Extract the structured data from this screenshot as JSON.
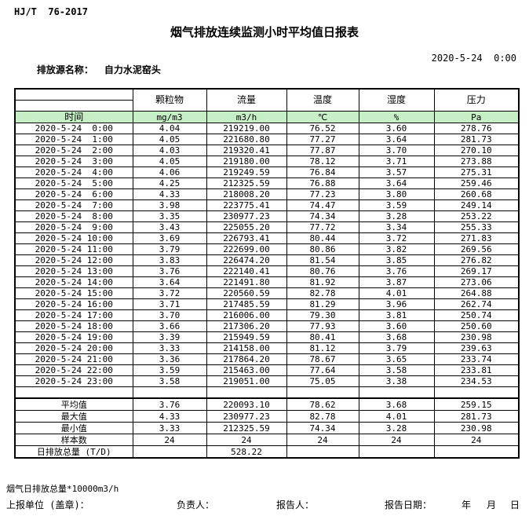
{
  "header": {
    "standard": "HJ/T  76-2017",
    "title": "烟气排放连续监测小时平均值日报表",
    "source_label": "排放源名称：",
    "source_name": "自力水泥窑头",
    "datetime": "2020-5-24  0:00"
  },
  "table": {
    "time_header": "时间",
    "columns": [
      "颗粒物",
      "流量",
      "温度",
      "湿度",
      "压力"
    ],
    "units": [
      "mg/m3",
      "m3/h",
      "℃",
      "%",
      "Pa"
    ],
    "rows": [
      {
        "time": "2020-5-24  0:00",
        "values": [
          "4.04",
          "219219.00",
          "76.52",
          "3.60",
          "278.76"
        ]
      },
      {
        "time": "2020-5-24  1:00",
        "values": [
          "4.05",
          "221680.80",
          "77.27",
          "3.64",
          "281.73"
        ]
      },
      {
        "time": "2020-5-24  2:00",
        "values": [
          "4.03",
          "219320.41",
          "77.87",
          "3.70",
          "270.10"
        ]
      },
      {
        "time": "2020-5-24  3:00",
        "values": [
          "4.05",
          "219180.00",
          "78.12",
          "3.71",
          "273.88"
        ]
      },
      {
        "time": "2020-5-24  4:00",
        "values": [
          "4.06",
          "219249.59",
          "76.84",
          "3.57",
          "275.31"
        ]
      },
      {
        "time": "2020-5-24  5:00",
        "values": [
          "4.25",
          "212325.59",
          "76.88",
          "3.64",
          "259.46"
        ]
      },
      {
        "time": "2020-5-24  6:00",
        "values": [
          "4.33",
          "218008.20",
          "77.23",
          "3.80",
          "260.68"
        ]
      },
      {
        "time": "2020-5-24  7:00",
        "values": [
          "3.98",
          "223775.41",
          "74.47",
          "3.59",
          "249.14"
        ]
      },
      {
        "time": "2020-5-24  8:00",
        "values": [
          "3.35",
          "230977.23",
          "74.34",
          "3.28",
          "253.22"
        ]
      },
      {
        "time": "2020-5-24  9:00",
        "values": [
          "3.43",
          "225055.20",
          "77.72",
          "3.34",
          "255.33"
        ]
      },
      {
        "time": "2020-5-24 10:00",
        "values": [
          "3.69",
          "226793.41",
          "80.44",
          "3.72",
          "271.83"
        ]
      },
      {
        "time": "2020-5-24 11:00",
        "values": [
          "3.79",
          "222699.00",
          "80.86",
          "3.82",
          "269.56"
        ]
      },
      {
        "time": "2020-5-24 12:00",
        "values": [
          "3.83",
          "226474.20",
          "81.54",
          "3.85",
          "276.82"
        ]
      },
      {
        "time": "2020-5-24 13:00",
        "values": [
          "3.76",
          "222140.41",
          "80.76",
          "3.76",
          "269.17"
        ]
      },
      {
        "time": "2020-5-24 14:00",
        "values": [
          "3.64",
          "221491.80",
          "81.92",
          "3.87",
          "273.06"
        ]
      },
      {
        "time": "2020-5-24 15:00",
        "values": [
          "3.72",
          "220560.59",
          "82.78",
          "4.01",
          "264.88"
        ]
      },
      {
        "time": "2020-5-24 16:00",
        "values": [
          "3.71",
          "217485.59",
          "81.29",
          "3.96",
          "262.74"
        ]
      },
      {
        "time": "2020-5-24 17:00",
        "values": [
          "3.70",
          "216006.00",
          "79.30",
          "3.81",
          "250.74"
        ]
      },
      {
        "time": "2020-5-24 18:00",
        "values": [
          "3.66",
          "217306.20",
          "77.93",
          "3.60",
          "250.60"
        ]
      },
      {
        "time": "2020-5-24 19:00",
        "values": [
          "3.39",
          "215949.59",
          "80.41",
          "3.68",
          "230.98"
        ]
      },
      {
        "time": "2020-5-24 20:00",
        "values": [
          "3.33",
          "214158.00",
          "81.12",
          "3.79",
          "239.63"
        ]
      },
      {
        "time": "2020-5-24 21:00",
        "values": [
          "3.36",
          "217864.20",
          "78.67",
          "3.65",
          "233.74"
        ]
      },
      {
        "time": "2020-5-24 22:00",
        "values": [
          "3.59",
          "215463.00",
          "77.64",
          "3.58",
          "233.81"
        ]
      },
      {
        "time": "2020-5-24 23:00",
        "values": [
          "3.58",
          "219051.00",
          "75.05",
          "3.38",
          "234.53"
        ]
      }
    ],
    "summary": [
      {
        "label": "平均值",
        "values": [
          "3.76",
          "220093.10",
          "78.62",
          "3.68",
          "259.15"
        ]
      },
      {
        "label": "最大值",
        "values": [
          "4.33",
          "230977.23",
          "82.78",
          "4.01",
          "281.73"
        ]
      },
      {
        "label": "最小值",
        "values": [
          "3.33",
          "212325.59",
          "74.34",
          "3.28",
          "230.98"
        ]
      },
      {
        "label": "样本数",
        "values": [
          "24",
          "24",
          "24",
          "24",
          "24"
        ]
      },
      {
        "label": "日排放总量 (T/D)",
        "values": [
          "",
          "528.22",
          "",
          "",
          ""
        ]
      }
    ]
  },
  "footer": {
    "note": "烟气日排放总量*10000m3/h",
    "report_unit_label": "上报单位 (盖章)：",
    "responsible_label": "负责人：",
    "reporter_label": "报告人：",
    "report_date_label": "报告日期：",
    "year_label": "年",
    "month_label": "月",
    "day_label": "日"
  },
  "colors": {
    "highlight_green": "#c6efc6",
    "border": "#000000"
  }
}
